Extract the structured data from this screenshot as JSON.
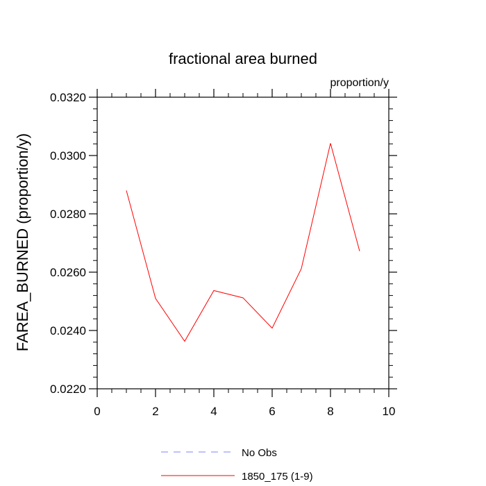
{
  "chart_data": {
    "type": "line",
    "title": "fractional area burned",
    "units": "proportion/y",
    "xlabel": "",
    "ylabel": "FAREA_BURNED  (proportion/y)",
    "xlim": [
      0,
      10
    ],
    "ylim": [
      0.022,
      0.032
    ],
    "x_ticks": [
      0,
      2,
      4,
      6,
      8,
      10
    ],
    "x_tick_labels": [
      "0",
      "2",
      "4",
      "6",
      "8",
      "10"
    ],
    "y_ticks": [
      0.022,
      0.024,
      0.026,
      0.028,
      0.03,
      0.032
    ],
    "y_tick_labels": [
      "0.0220",
      "0.0240",
      "0.0260",
      "0.0280",
      "0.0300",
      "0.0320"
    ],
    "grid": false,
    "legend_position": "bottom",
    "series": [
      {
        "name": "1850_175 (1-9)",
        "color": "#ff0000",
        "style": "solid",
        "x": [
          1,
          2,
          3,
          4,
          5,
          6,
          7,
          8,
          9
        ],
        "values": [
          0.0288,
          0.0251,
          0.02363,
          0.02537,
          0.02512,
          0.02408,
          0.02612,
          0.03042,
          0.02672
        ]
      }
    ],
    "legend": [
      {
        "label": "No Obs",
        "color": "#8080ff",
        "style": "dashed"
      },
      {
        "label": "1850_175 (1-9)",
        "color": "#ff0000",
        "style": "solid"
      }
    ]
  }
}
